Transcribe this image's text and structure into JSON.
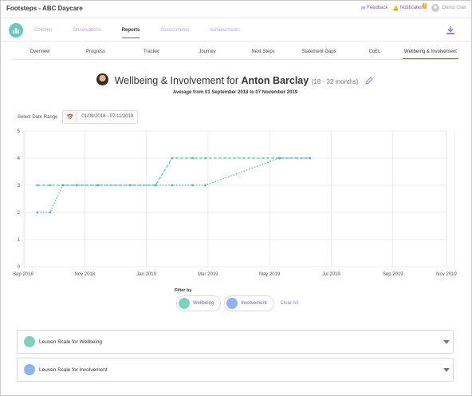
{
  "app": {
    "title": "Footsteps - ABC Daycare"
  },
  "topbar": {
    "feedback_label": "Feedback",
    "notifications_label": "Notifications",
    "notifications_count": "1",
    "user_name": "Demo User"
  },
  "nav": {
    "items": [
      {
        "label": "Children",
        "active": false
      },
      {
        "label": "Observations",
        "active": false
      },
      {
        "label": "Reports",
        "active": true
      },
      {
        "label": "Assessments",
        "active": false
      },
      {
        "label": "Achievements",
        "active": false
      }
    ],
    "download_icon": "download-icon"
  },
  "subtabs": [
    {
      "label": "Overview",
      "active": false
    },
    {
      "label": "Progress",
      "active": false
    },
    {
      "label": "Tracker",
      "active": false
    },
    {
      "label": "Journey",
      "active": false
    },
    {
      "label": "Next Steps",
      "active": false
    },
    {
      "label": "Statement Gaps",
      "active": false
    },
    {
      "label": "CoEL",
      "active": false
    },
    {
      "label": "Wellbeing & Involvement",
      "active": true
    }
  ],
  "header": {
    "title_prefix": "Wellbeing & Involvement for",
    "child_name": "Anton Barclay",
    "age_range": "(18 - 32 months)",
    "subtitle": "Average from 01 September 2018 to 07 November 2019"
  },
  "date_range": {
    "label": "Select Date Range",
    "value": "01/09/2018 - 07/11/2019"
  },
  "colors": {
    "wellbeing": "#7fd1bd",
    "involvement": "#8fb4ef",
    "wellbeing_line": "#5cc0a3",
    "involvement_line": "#62a3e6",
    "accent": "#7a5aa6"
  },
  "chart_data": {
    "type": "line",
    "x_tick_labels": [
      "Sep 2018",
      "Nov 2018",
      "Jan 2019",
      "Mar 2019",
      "May 2019",
      "Jul 2019",
      "Sep 2019",
      "Nov 2019"
    ],
    "xlim": [
      "2018-09-01",
      "2019-11-07"
    ],
    "ylim": [
      0,
      5
    ],
    "y_ticks": [
      0,
      1,
      2,
      3,
      4,
      5
    ],
    "grid": true,
    "legend": "none",
    "series": [
      {
        "name": "Wellbeing",
        "style": "dashed",
        "points": [
          [
            "2018-09-14",
            3
          ],
          [
            "2018-09-27",
            3
          ],
          [
            "2018-10-10",
            3
          ],
          [
            "2018-10-24",
            3
          ],
          [
            "2018-11-15",
            3
          ],
          [
            "2018-12-18",
            3
          ],
          [
            "2019-01-13",
            3
          ],
          [
            "2019-01-30",
            4
          ],
          [
            "2019-02-20",
            4
          ],
          [
            "2019-03-05",
            4
          ],
          [
            "2019-05-20",
            4
          ],
          [
            "2019-06-20",
            4
          ]
        ]
      },
      {
        "name": "Involvement",
        "style": "dotted",
        "points": [
          [
            "2018-09-14",
            2
          ],
          [
            "2018-09-27",
            2
          ],
          [
            "2018-10-10",
            3
          ],
          [
            "2018-10-24",
            3
          ],
          [
            "2018-11-15",
            3
          ],
          [
            "2018-12-18",
            3
          ],
          [
            "2019-01-13",
            3
          ],
          [
            "2019-01-30",
            3
          ],
          [
            "2019-02-20",
            3
          ],
          [
            "2019-03-05",
            3
          ],
          [
            "2019-05-20",
            4
          ],
          [
            "2019-06-20",
            4
          ]
        ]
      }
    ]
  },
  "filter": {
    "label": "Filter by",
    "wellbeing_label": "Wellbeing",
    "involvement_label": "Involvement",
    "clear_label": "Clear All"
  },
  "accordions": {
    "wellbeing_label": "Leuven Scale for Wellbeing",
    "involvement_label": "Leuven Scale for Involvement"
  }
}
